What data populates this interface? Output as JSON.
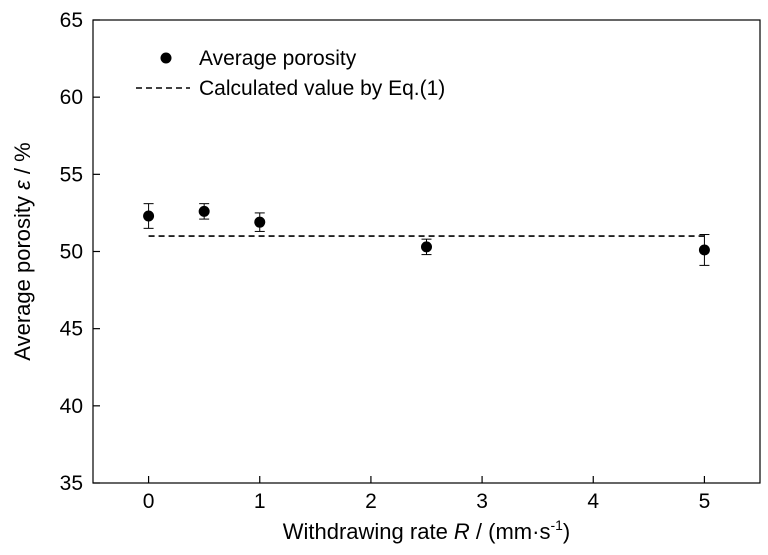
{
  "chart_data": {
    "type": "scatter",
    "xlabel": {
      "prefix": "Withdrawing rate ",
      "var": "R",
      "mid": " / (mm·s",
      "sup": "-1",
      "suffix": ")"
    },
    "ylabel": {
      "prefix": "Average porosity ",
      "var": "ε",
      "suffix": " / %"
    },
    "xlim": [
      -0.5,
      5.5
    ],
    "ylim": [
      35,
      65
    ],
    "xticks": [
      0,
      1,
      2,
      3,
      4,
      5
    ],
    "yticks": [
      35,
      40,
      45,
      50,
      55,
      60,
      65
    ],
    "grid": false,
    "legend_position": "top-left",
    "series": [
      {
        "name": "Average porosity",
        "style": "marker",
        "color": "#000000",
        "points": [
          {
            "x": 0,
            "y": 52.3,
            "err": 0.8
          },
          {
            "x": 0.5,
            "y": 52.6,
            "err": 0.5
          },
          {
            "x": 1,
            "y": 51.9,
            "err": 0.6
          },
          {
            "x": 2.5,
            "y": 50.3,
            "err": 0.5
          },
          {
            "x": 5,
            "y": 50.1,
            "err": 1.0
          }
        ]
      },
      {
        "name": "Calculated value by Eq.(1)",
        "style": "dashed-line",
        "color": "#000000",
        "x": [
          0,
          5
        ],
        "y": [
          51.0,
          51.0
        ]
      }
    ]
  }
}
